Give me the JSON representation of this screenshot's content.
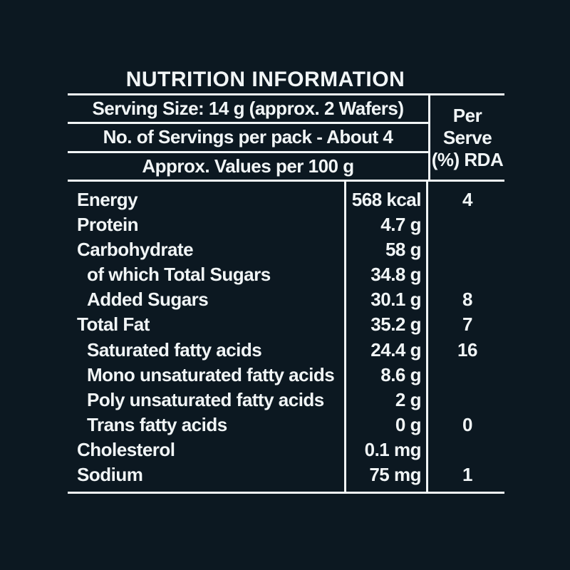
{
  "colors": {
    "background": "#0c1821",
    "foreground": "#f1f5f6",
    "grid_lines": "#f1f5f6"
  },
  "title": "NUTRITION INFORMATION",
  "header": {
    "serving_size": "Serving Size: 14 g (approx. 2 Wafers)",
    "servings_per_pack": "No. of Servings per pack - About 4",
    "values_basis": "Approx. Values per 100 g",
    "per_serve_line1": "Per",
    "per_serve_line2": "Serve",
    "per_serve_line3": "(%) RDA"
  },
  "rows": [
    {
      "label": "Energy",
      "value": "568 kcal",
      "rda": "4"
    },
    {
      "label": "Protein",
      "value": "4.7 g",
      "rda": ""
    },
    {
      "label": "Carbohydrate",
      "value": "58 g",
      "rda": ""
    },
    {
      "label": "of which Total Sugars",
      "value": "34.8 g",
      "rda": ""
    },
    {
      "label": "Added Sugars",
      "value": "30.1 g",
      "rda": "8"
    },
    {
      "label": "Total Fat",
      "value": "35.2 g",
      "rda": "7"
    },
    {
      "label": "Saturated fatty acids",
      "value": "24.4 g",
      "rda": "16"
    },
    {
      "label": "Mono unsaturated fatty acids",
      "value": "8.6 g",
      "rda": ""
    },
    {
      "label": "Poly unsaturated fatty acids",
      "value": "2 g",
      "rda": ""
    },
    {
      "label": "Trans fatty acids",
      "value": "0 g",
      "rda": "0"
    },
    {
      "label": "Cholesterol",
      "value": "0.1 mg",
      "rda": ""
    },
    {
      "label": "Sodium",
      "value": "75 mg",
      "rda": "1"
    }
  ]
}
